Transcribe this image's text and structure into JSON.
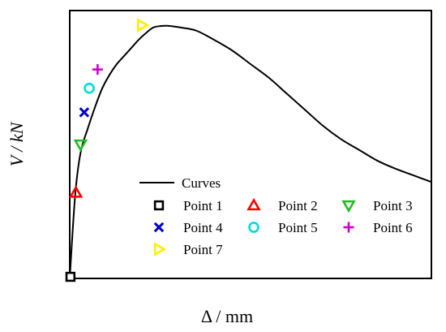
{
  "chart_data": {
    "type": "line",
    "xlabel": "Δ / mm",
    "ylabel": "V / kN",
    "grid": false,
    "legend_position": "bottom-right",
    "xlim": [
      0,
      100
    ],
    "ylim": [
      0,
      100
    ],
    "series": [
      {
        "name": "Curves",
        "color": "#000000",
        "x": [
          0,
          1.5,
          3,
          5,
          7,
          9,
          11,
          13,
          15,
          17,
          19,
          21,
          23,
          25,
          27,
          29,
          31,
          35,
          40,
          45,
          50,
          55,
          60,
          65,
          70,
          75,
          80,
          85,
          90,
          95,
          100
        ],
        "y": [
          0,
          31,
          47,
          56,
          64,
          71,
          76,
          80,
          83,
          86,
          89,
          91.5,
          93.6,
          94.2,
          94.3,
          94.0,
          93.6,
          92.5,
          89,
          85,
          80,
          75,
          69,
          63,
          57,
          52,
          48,
          44,
          41,
          38.5,
          36
        ]
      }
    ],
    "points": [
      {
        "name": "Point 1",
        "marker": "square",
        "color": "#000000",
        "x": 0.2,
        "y": 0.6
      },
      {
        "name": "Point 2",
        "marker": "triangle-up",
        "color": "#ff0000",
        "x": 1.7,
        "y": 32
      },
      {
        "name": "Point 3",
        "marker": "triangle-down",
        "color": "#22bb22",
        "x": 3,
        "y": 50
      },
      {
        "name": "Point 4",
        "marker": "x",
        "color": "#0000cc",
        "x": 4,
        "y": 62
      },
      {
        "name": "Point 5",
        "marker": "circle",
        "color": "#00dddd",
        "x": 5.4,
        "y": 71
      },
      {
        "name": "Point 6",
        "marker": "plus",
        "color": "#cc00cc",
        "x": 7.7,
        "y": 78
      },
      {
        "name": "Point 7",
        "marker": "triangle-right",
        "color": "#ffee00",
        "x": 20,
        "y": 94.5
      }
    ]
  }
}
